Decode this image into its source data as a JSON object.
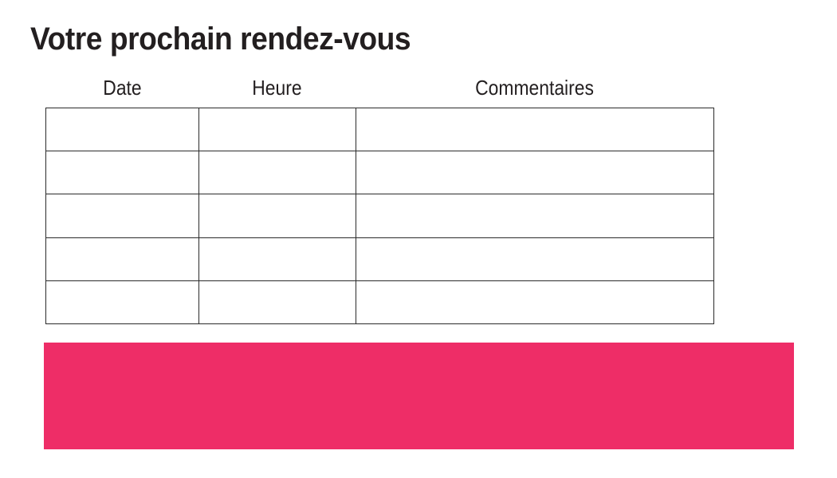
{
  "title": "Votre prochain rendez-vous",
  "table": {
    "headers": [
      "Date",
      "Heure",
      "Commentaires"
    ],
    "rows": [
      [
        "",
        "",
        ""
      ],
      [
        "",
        "",
        ""
      ],
      [
        "",
        "",
        ""
      ],
      [
        "",
        "",
        ""
      ],
      [
        "",
        "",
        ""
      ]
    ]
  },
  "banner": {
    "text": "",
    "color": "#ee2d67"
  },
  "colors": {
    "accent_pink": "#ee2d67",
    "table_border": "#2b2b2b",
    "text": "#231f20",
    "background": "#ffffff"
  }
}
